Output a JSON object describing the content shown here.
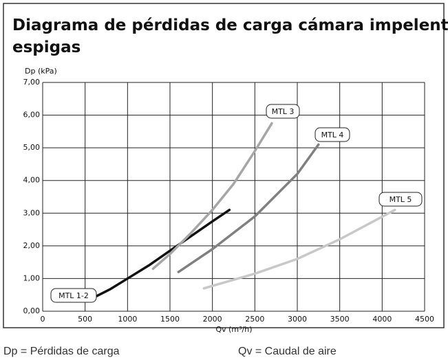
{
  "chart_data": {
    "type": "line",
    "title": "Diagrama de pérdidas de carga cámara impelente con espigas",
    "y_label": "Dp (kPa)",
    "x_label": "Qv (m³/h)",
    "notes": [
      "Dp = Pérdidas de carga",
      "Qv = Caudal de aire"
    ],
    "xlim": [
      0,
      4500
    ],
    "xticks": [
      0,
      500,
      1000,
      1500,
      2000,
      2500,
      3000,
      3500,
      4000,
      4500
    ],
    "ylim": [
      0,
      7
    ],
    "yticks": [
      {
        "value": 0,
        "label": "0,00"
      },
      {
        "value": 1,
        "label": "1,00"
      },
      {
        "value": 2,
        "label": "2,00"
      },
      {
        "value": 3,
        "label": "3,00"
      },
      {
        "value": 4,
        "label": "4,00"
      },
      {
        "value": 5,
        "label": "5,00"
      },
      {
        "value": 6,
        "label": "6,00"
      },
      {
        "value": 7,
        "label": "7,00"
      }
    ],
    "grid": true,
    "series": [
      {
        "name": "MTL 1-2",
        "color": "#111111",
        "x": [
          550,
          800,
          1000,
          1250,
          1500,
          1750,
          2000,
          2200
        ],
        "values": [
          0.35,
          0.68,
          1.0,
          1.4,
          1.85,
          2.3,
          2.75,
          3.1
        ]
      },
      {
        "name": "MTL 3",
        "color": "#a6a6a6",
        "x": [
          1300,
          1500,
          1750,
          2000,
          2250,
          2500,
          2700
        ],
        "values": [
          1.3,
          1.75,
          2.4,
          3.1,
          3.9,
          4.9,
          5.75
        ]
      },
      {
        "name": "MTL 4",
        "color": "#808080",
        "x": [
          1600,
          2000,
          2500,
          3000,
          3250
        ],
        "values": [
          1.2,
          1.9,
          2.9,
          4.2,
          5.1
        ]
      },
      {
        "name": "MTL 5",
        "color": "#c8c8c8",
        "x": [
          1900,
          2500,
          3000,
          3500,
          4150
        ],
        "values": [
          0.7,
          1.15,
          1.6,
          2.2,
          3.1
        ]
      }
    ]
  }
}
